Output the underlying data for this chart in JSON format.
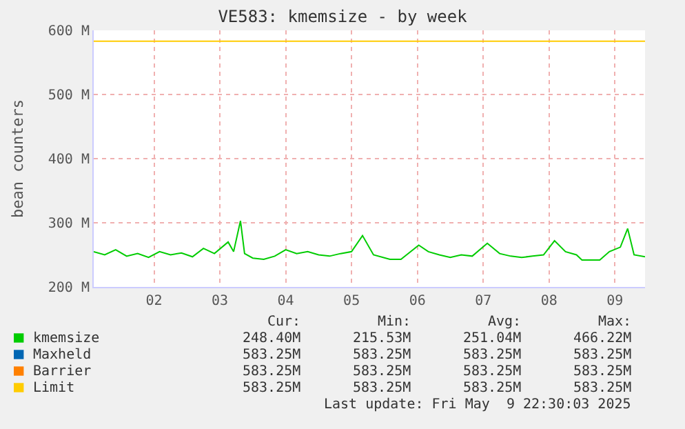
{
  "chart_data": {
    "type": "line",
    "title": "VE583: kmemsize - by week",
    "ylabel": "bean counters",
    "xlim": [
      "2025-05-01T14:00",
      "2025-05-09T23:00"
    ],
    "xticks": [
      {
        "value": "2025-05-02T12:00",
        "label": "02"
      },
      {
        "value": "2025-05-03T12:00",
        "label": "03"
      },
      {
        "value": "2025-05-04T12:00",
        "label": "04"
      },
      {
        "value": "2025-05-05T12:00",
        "label": "05"
      },
      {
        "value": "2025-05-06T12:00",
        "label": "06"
      },
      {
        "value": "2025-05-07T12:00",
        "label": "07"
      },
      {
        "value": "2025-05-08T12:00",
        "label": "08"
      },
      {
        "value": "2025-05-09T12:00",
        "label": "09"
      }
    ],
    "ylim": [
      200,
      600
    ],
    "yticks": [
      {
        "value": 200,
        "label": "200 M"
      },
      {
        "value": 300,
        "label": "300 M"
      },
      {
        "value": 400,
        "label": "400 M"
      },
      {
        "value": 500,
        "label": "500 M"
      },
      {
        "value": 600,
        "label": "600 M"
      }
    ],
    "grid": true,
    "legend": "bottom",
    "marker": "none",
    "line_style": "solid",
    "series": [
      {
        "name": "kmemsize",
        "color": "#00cc00",
        "x": [
          "2025-05-01T14:00",
          "2025-05-01T18:00",
          "2025-05-01T22:00",
          "2025-05-02T02:00",
          "2025-05-02T06:00",
          "2025-05-02T10:00",
          "2025-05-02T14:00",
          "2025-05-02T18:00",
          "2025-05-02T22:00",
          "2025-05-03T02:00",
          "2025-05-03T06:00",
          "2025-05-03T10:00",
          "2025-05-03T15:00",
          "2025-05-03T17:00",
          "2025-05-03T19:30",
          "2025-05-03T21:00",
          "2025-05-04T00:00",
          "2025-05-04T04:00",
          "2025-05-04T08:00",
          "2025-05-04T12:00",
          "2025-05-04T16:00",
          "2025-05-04T20:00",
          "2025-05-05T00:00",
          "2025-05-05T04:00",
          "2025-05-05T08:00",
          "2025-05-05T12:00",
          "2025-05-05T16:00",
          "2025-05-05T20:00",
          "2025-05-06T02:00",
          "2025-05-06T06:00",
          "2025-05-06T12:30",
          "2025-05-06T16:00",
          "2025-05-06T20:00",
          "2025-05-07T00:00",
          "2025-05-07T04:00",
          "2025-05-07T08:00",
          "2025-05-07T13:30",
          "2025-05-07T18:00",
          "2025-05-07T22:00",
          "2025-05-08T02:00",
          "2025-05-08T06:00",
          "2025-05-08T10:00",
          "2025-05-08T14:00",
          "2025-05-08T18:00",
          "2025-05-08T22:00",
          "2025-05-09T00:00",
          "2025-05-09T06:30",
          "2025-05-09T10:00",
          "2025-05-09T14:00",
          "2025-05-09T16:40",
          "2025-05-09T19:00",
          "2025-05-09T23:00"
        ],
        "values": [
          255,
          250,
          258,
          248,
          252,
          246,
          255,
          250,
          253,
          247,
          260,
          252,
          270,
          255,
          303,
          252,
          245,
          243,
          248,
          258,
          252,
          255,
          250,
          248,
          252,
          255,
          280,
          250,
          243,
          243,
          265,
          255,
          250,
          246,
          250,
          248,
          268,
          252,
          248,
          246,
          248,
          250,
          272,
          255,
          250,
          242,
          242,
          255,
          262,
          291,
          250,
          247
        ]
      },
      {
        "name": "Maxheld",
        "color": "#0066b3",
        "values": [
          null,
          null
        ]
      },
      {
        "name": "Barrier",
        "color": "#ff8000",
        "values": [
          null,
          null
        ]
      },
      {
        "name": "Limit",
        "color": "#ffcc00",
        "x": [
          "2025-05-01T14:00",
          "2025-05-09T23:00"
        ],
        "values": [
          583,
          583
        ]
      }
    ],
    "annotations": [
      "Cur:",
      "Min:",
      "Avg:",
      "Max:",
      "248.40M",
      "215.53M",
      "251.04M",
      "466.22M",
      "583.25M",
      "583.25M",
      "583.25M",
      "583.25M",
      "583.25M",
      "583.25M",
      "583.25M",
      "583.25M",
      "583.25M",
      "583.25M",
      "583.25M",
      "583.25M",
      "Last update: Fri May  9 22:30:03 2025"
    ]
  }
}
